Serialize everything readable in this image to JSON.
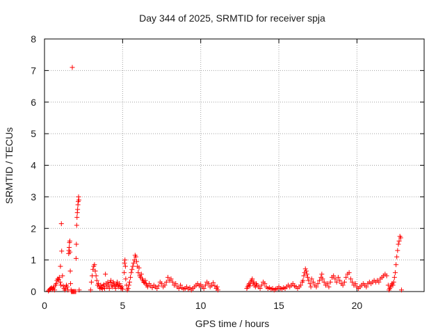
{
  "chart_data": {
    "type": "scatter",
    "title": "Day 344 of 2025, SRMTID for receiver spja",
    "xlabel": "GPS time / hours",
    "ylabel": "SRMTID / TECUs",
    "xlim": [
      0,
      24.3
    ],
    "ylim": [
      0,
      8
    ],
    "xticks": [
      0,
      5,
      10,
      15,
      20
    ],
    "yticks": [
      0,
      1,
      2,
      3,
      4,
      5,
      6,
      7,
      8
    ],
    "grid": true,
    "marker": "+",
    "color": "#ff0000",
    "series": [
      {
        "name": "SRMTID",
        "points": [
          [
            0.25,
            0.02
          ],
          [
            0.3,
            0.05
          ],
          [
            0.35,
            0.08
          ],
          [
            0.4,
            0.1
          ],
          [
            0.45,
            0.12
          ],
          [
            0.5,
            0.06
          ],
          [
            0.55,
            0.1
          ],
          [
            0.6,
            0.15
          ],
          [
            0.65,
            0.05
          ],
          [
            0.7,
            0.2
          ],
          [
            0.75,
            0.25
          ],
          [
            0.8,
            0.35
          ],
          [
            0.85,
            0.4
          ],
          [
            0.9,
            0.38
          ],
          [
            0.95,
            0.45
          ],
          [
            1.0,
            0.3
          ],
          [
            1.02,
            0.8
          ],
          [
            1.05,
            0.2
          ],
          [
            1.08,
            2.15
          ],
          [
            1.1,
            1.28
          ],
          [
            1.15,
            0.5
          ],
          [
            1.2,
            0.18
          ],
          [
            1.25,
            0.1
          ],
          [
            1.3,
            0.05
          ],
          [
            1.35,
            0.1
          ],
          [
            1.4,
            0.2
          ],
          [
            1.45,
            0.15
          ],
          [
            1.5,
            0.05
          ],
          [
            1.55,
            1.2
          ],
          [
            1.56,
            1.3
          ],
          [
            1.58,
            1.4
          ],
          [
            1.6,
            1.55
          ],
          [
            1.62,
            1.6
          ],
          [
            1.63,
            1.25
          ],
          [
            1.65,
            0.65
          ],
          [
            1.67,
            0.25
          ],
          [
            1.7,
            0.05
          ],
          [
            1.72,
            0.0
          ],
          [
            1.75,
            0.0
          ],
          [
            1.78,
            7.1
          ],
          [
            1.8,
            0.0
          ],
          [
            1.85,
            0.0
          ],
          [
            1.9,
            0.0
          ],
          [
            1.95,
            0.0
          ],
          [
            2.0,
            0.0
          ],
          [
            2.02,
            1.05
          ],
          [
            2.04,
            1.5
          ],
          [
            2.06,
            2.1
          ],
          [
            2.08,
            2.35
          ],
          [
            2.1,
            2.5
          ],
          [
            2.12,
            2.6
          ],
          [
            2.14,
            2.75
          ],
          [
            2.16,
            2.85
          ],
          [
            2.18,
            3.0
          ],
          [
            2.2,
            2.9
          ],
          [
            2.22,
            0.05
          ],
          [
            2.95,
            0.05
          ],
          [
            3.0,
            0.3
          ],
          [
            3.05,
            0.5
          ],
          [
            3.1,
            0.7
          ],
          [
            3.15,
            0.8
          ],
          [
            3.2,
            0.85
          ],
          [
            3.25,
            0.65
          ],
          [
            3.3,
            0.5
          ],
          [
            3.35,
            0.35
          ],
          [
            3.4,
            0.2
          ],
          [
            3.45,
            0.25
          ],
          [
            3.5,
            0.15
          ],
          [
            3.55,
            0.1
          ],
          [
            3.6,
            0.2
          ],
          [
            3.65,
            0.12
          ],
          [
            3.7,
            0.08
          ],
          [
            3.75,
            0.18
          ],
          [
            3.8,
            0.22
          ],
          [
            3.85,
            0.1
          ],
          [
            3.9,
            0.55
          ],
          [
            3.95,
            0.25
          ],
          [
            4.0,
            0.15
          ],
          [
            4.05,
            0.3
          ],
          [
            4.1,
            0.2
          ],
          [
            4.15,
            0.1
          ],
          [
            4.2,
            0.28
          ],
          [
            4.25,
            0.35
          ],
          [
            4.3,
            0.2
          ],
          [
            4.35,
            0.15
          ],
          [
            4.4,
            0.3
          ],
          [
            4.45,
            0.25
          ],
          [
            4.5,
            0.18
          ],
          [
            4.55,
            0.1
          ],
          [
            4.6,
            0.22
          ],
          [
            4.65,
            0.3
          ],
          [
            4.7,
            0.2
          ],
          [
            4.75,
            0.15
          ],
          [
            4.8,
            0.25
          ],
          [
            4.85,
            0.18
          ],
          [
            4.9,
            0.1
          ],
          [
            4.95,
            0.15
          ],
          [
            5.0,
            0.08
          ],
          [
            5.1,
            0.6
          ],
          [
            5.12,
            0.9
          ],
          [
            5.15,
            1.0
          ],
          [
            5.18,
            0.8
          ],
          [
            5.2,
            0.4
          ],
          [
            5.25,
            0.2
          ],
          [
            5.3,
            0.05
          ],
          [
            5.35,
            0.1
          ],
          [
            5.4,
            0.2
          ],
          [
            5.45,
            0.3
          ],
          [
            5.5,
            0.45
          ],
          [
            5.55,
            0.6
          ],
          [
            5.6,
            0.7
          ],
          [
            5.65,
            0.8
          ],
          [
            5.7,
            0.9
          ],
          [
            5.75,
            1.0
          ],
          [
            5.8,
            1.15
          ],
          [
            5.85,
            1.1
          ],
          [
            5.9,
            0.95
          ],
          [
            5.95,
            0.8
          ],
          [
            6.0,
            0.6
          ],
          [
            6.05,
            0.75
          ],
          [
            6.1,
            0.5
          ],
          [
            6.15,
            0.45
          ],
          [
            6.2,
            0.55
          ],
          [
            6.25,
            0.4
          ],
          [
            6.3,
            0.35
          ],
          [
            6.35,
            0.3
          ],
          [
            6.4,
            0.28
          ],
          [
            6.45,
            0.35
          ],
          [
            6.5,
            0.25
          ],
          [
            6.55,
            0.2
          ],
          [
            6.6,
            0.15
          ],
          [
            6.7,
            0.25
          ],
          [
            6.8,
            0.18
          ],
          [
            6.9,
            0.12
          ],
          [
            7.0,
            0.2
          ],
          [
            7.1,
            0.15
          ],
          [
            7.2,
            0.1
          ],
          [
            7.3,
            0.18
          ],
          [
            7.4,
            0.3
          ],
          [
            7.5,
            0.25
          ],
          [
            7.6,
            0.15
          ],
          [
            7.7,
            0.2
          ],
          [
            7.8,
            0.3
          ],
          [
            7.9,
            0.45
          ],
          [
            8.0,
            0.35
          ],
          [
            8.1,
            0.4
          ],
          [
            8.2,
            0.3
          ],
          [
            8.3,
            0.2
          ],
          [
            8.4,
            0.25
          ],
          [
            8.5,
            0.15
          ],
          [
            8.6,
            0.1
          ],
          [
            8.7,
            0.2
          ],
          [
            8.8,
            0.12
          ],
          [
            8.9,
            0.08
          ],
          [
            9.0,
            0.1
          ],
          [
            9.1,
            0.15
          ],
          [
            9.2,
            0.08
          ],
          [
            9.3,
            0.12
          ],
          [
            9.4,
            0.05
          ],
          [
            9.5,
            0.1
          ],
          [
            9.6,
            0.15
          ],
          [
            9.7,
            0.2
          ],
          [
            9.8,
            0.25
          ],
          [
            9.9,
            0.18
          ],
          [
            10.0,
            0.22
          ],
          [
            10.1,
            0.15
          ],
          [
            10.2,
            0.1
          ],
          [
            10.3,
            0.2
          ],
          [
            10.4,
            0.3
          ],
          [
            10.5,
            0.25
          ],
          [
            10.6,
            0.15
          ],
          [
            10.7,
            0.2
          ],
          [
            10.8,
            0.28
          ],
          [
            10.9,
            0.18
          ],
          [
            11.0,
            0.1
          ],
          [
            11.05,
            0.15
          ],
          [
            11.1,
            0.05
          ],
          [
            12.95,
            0.1
          ],
          [
            13.0,
            0.15
          ],
          [
            13.05,
            0.2
          ],
          [
            13.1,
            0.25
          ],
          [
            13.15,
            0.18
          ],
          [
            13.2,
            0.3
          ],
          [
            13.25,
            0.35
          ],
          [
            13.3,
            0.4
          ],
          [
            13.35,
            0.25
          ],
          [
            13.4,
            0.3
          ],
          [
            13.45,
            0.2
          ],
          [
            13.5,
            0.15
          ],
          [
            13.55,
            0.25
          ],
          [
            13.6,
            0.2
          ],
          [
            13.7,
            0.15
          ],
          [
            13.8,
            0.1
          ],
          [
            13.9,
            0.2
          ],
          [
            14.0,
            0.3
          ],
          [
            14.1,
            0.25
          ],
          [
            14.2,
            0.15
          ],
          [
            14.3,
            0.1
          ],
          [
            14.4,
            0.12
          ],
          [
            14.5,
            0.08
          ],
          [
            14.6,
            0.1
          ],
          [
            14.7,
            0.05
          ],
          [
            14.8,
            0.08
          ],
          [
            14.9,
            0.1
          ],
          [
            15.0,
            0.15
          ],
          [
            15.1,
            0.1
          ],
          [
            15.2,
            0.08
          ],
          [
            15.3,
            0.12
          ],
          [
            15.4,
            0.1
          ],
          [
            15.5,
            0.15
          ],
          [
            15.6,
            0.2
          ],
          [
            15.7,
            0.15
          ],
          [
            15.8,
            0.2
          ],
          [
            15.9,
            0.25
          ],
          [
            16.0,
            0.18
          ],
          [
            16.1,
            0.15
          ],
          [
            16.2,
            0.1
          ],
          [
            16.3,
            0.15
          ],
          [
            16.4,
            0.2
          ],
          [
            16.5,
            0.3
          ],
          [
            16.55,
            0.35
          ],
          [
            16.6,
            0.5
          ],
          [
            16.65,
            0.6
          ],
          [
            16.7,
            0.72
          ],
          [
            16.75,
            0.65
          ],
          [
            16.8,
            0.55
          ],
          [
            16.85,
            0.45
          ],
          [
            16.9,
            0.35
          ],
          [
            17.0,
            0.25
          ],
          [
            17.05,
            0.15
          ],
          [
            17.1,
            0.4
          ],
          [
            17.2,
            0.3
          ],
          [
            17.3,
            0.2
          ],
          [
            17.4,
            0.15
          ],
          [
            17.5,
            0.25
          ],
          [
            17.6,
            0.35
          ],
          [
            17.7,
            0.45
          ],
          [
            17.75,
            0.55
          ],
          [
            17.8,
            0.4
          ],
          [
            17.9,
            0.3
          ],
          [
            18.0,
            0.2
          ],
          [
            18.1,
            0.25
          ],
          [
            18.2,
            0.15
          ],
          [
            18.3,
            0.3
          ],
          [
            18.4,
            0.45
          ],
          [
            18.5,
            0.5
          ],
          [
            18.6,
            0.4
          ],
          [
            18.7,
            0.3
          ],
          [
            18.8,
            0.45
          ],
          [
            18.9,
            0.35
          ],
          [
            19.0,
            0.25
          ],
          [
            19.1,
            0.2
          ],
          [
            19.2,
            0.3
          ],
          [
            19.3,
            0.45
          ],
          [
            19.4,
            0.55
          ],
          [
            19.5,
            0.6
          ],
          [
            19.6,
            0.4
          ],
          [
            19.7,
            0.3
          ],
          [
            19.8,
            0.2
          ],
          [
            19.9,
            0.25
          ],
          [
            20.0,
            0.15
          ],
          [
            20.1,
            0.1
          ],
          [
            20.2,
            0.15
          ],
          [
            20.3,
            0.2
          ],
          [
            20.4,
            0.25
          ],
          [
            20.5,
            0.2
          ],
          [
            20.6,
            0.15
          ],
          [
            20.7,
            0.25
          ],
          [
            20.8,
            0.3
          ],
          [
            20.9,
            0.25
          ],
          [
            21.0,
            0.3
          ],
          [
            21.1,
            0.35
          ],
          [
            21.2,
            0.3
          ],
          [
            21.3,
            0.35
          ],
          [
            21.4,
            0.3
          ],
          [
            21.5,
            0.4
          ],
          [
            21.6,
            0.45
          ],
          [
            21.7,
            0.5
          ],
          [
            21.8,
            0.55
          ],
          [
            21.9,
            0.5
          ],
          [
            22.0,
            0.2
          ],
          [
            22.05,
            0.05
          ],
          [
            22.1,
            0.1
          ],
          [
            22.15,
            0.15
          ],
          [
            22.2,
            0.2
          ],
          [
            22.25,
            0.25
          ],
          [
            22.3,
            0.2
          ],
          [
            22.35,
            0.3
          ],
          [
            22.4,
            0.45
          ],
          [
            22.45,
            0.6
          ],
          [
            22.5,
            0.85
          ],
          [
            22.55,
            1.1
          ],
          [
            22.6,
            1.3
          ],
          [
            22.65,
            1.5
          ],
          [
            22.7,
            1.6
          ],
          [
            22.75,
            1.75
          ],
          [
            22.8,
            1.7
          ],
          [
            22.85,
            0.05
          ]
        ]
      }
    ]
  }
}
